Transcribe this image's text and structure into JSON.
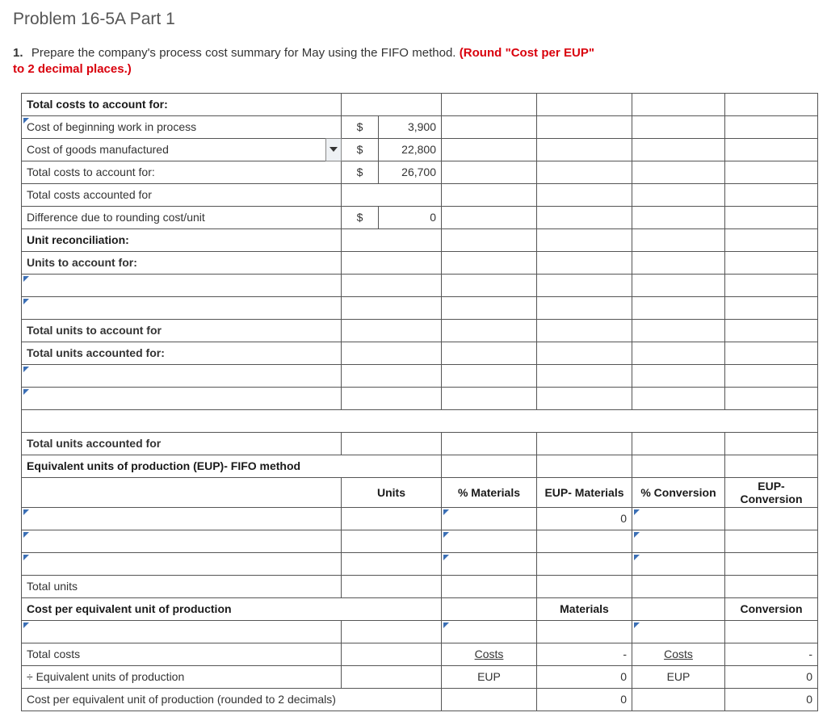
{
  "title": "Problem 16-5A Part 1",
  "instruction": {
    "number": "1.",
    "text_a": "Prepare the company's process cost summary for May using the FIFO method. ",
    "text_red": "(Round \"Cost per EUP\" to 2 decimal places.)"
  },
  "rows": {
    "section1_header": "Total costs to account for:",
    "cost_begin_wip": {
      "label": "Cost of beginning work in process",
      "currency": "$",
      "value": "3,900"
    },
    "cost_goods_mfg": {
      "label": "Cost of goods manufactured",
      "currency": "$",
      "value": "22,800"
    },
    "total_costs_acct_for": {
      "label": "Total costs to account for:",
      "currency": "$",
      "value": "26,700"
    },
    "total_costs_acctd_for": {
      "label": "Total costs accounted for"
    },
    "diff_rounding": {
      "label": "Difference due to rounding cost/unit",
      "currency": "$",
      "value": "0"
    },
    "unit_recon_header": "Unit reconciliation:",
    "units_acct_for": "Units to account for:",
    "total_units_acct_for": "Total units to account for",
    "total_units_acctd_for": "Total units accounted for:",
    "total_units_acctd_for2": "Total units accounted for",
    "eup_header": "Equivalent units of production (EUP)- FIFO method",
    "eup_cols": {
      "units": "Units",
      "pct_materials": "% Materials",
      "eup_materials": "EUP- Materials",
      "pct_conversion": "% Conversion",
      "eup_conversion": "EUP-Conversion"
    },
    "zero": "0",
    "total_units": "Total units",
    "cpeu_header": "Cost per equivalent unit of production",
    "materials": "Materials",
    "conversion": "Conversion",
    "total_costs": "Total costs",
    "costs": "Costs",
    "div_eup": "÷ Equivalent units of production",
    "eup": "EUP",
    "dash": "-",
    "cpeu_round": "Cost per equivalent unit of production (rounded to 2 decimals)"
  },
  "colors": {
    "header_bg": "#97b8e0",
    "highlight_bg": "#feffcf",
    "dropdown_border": "#3b6fb5",
    "instruction_red": "#d9000c"
  }
}
